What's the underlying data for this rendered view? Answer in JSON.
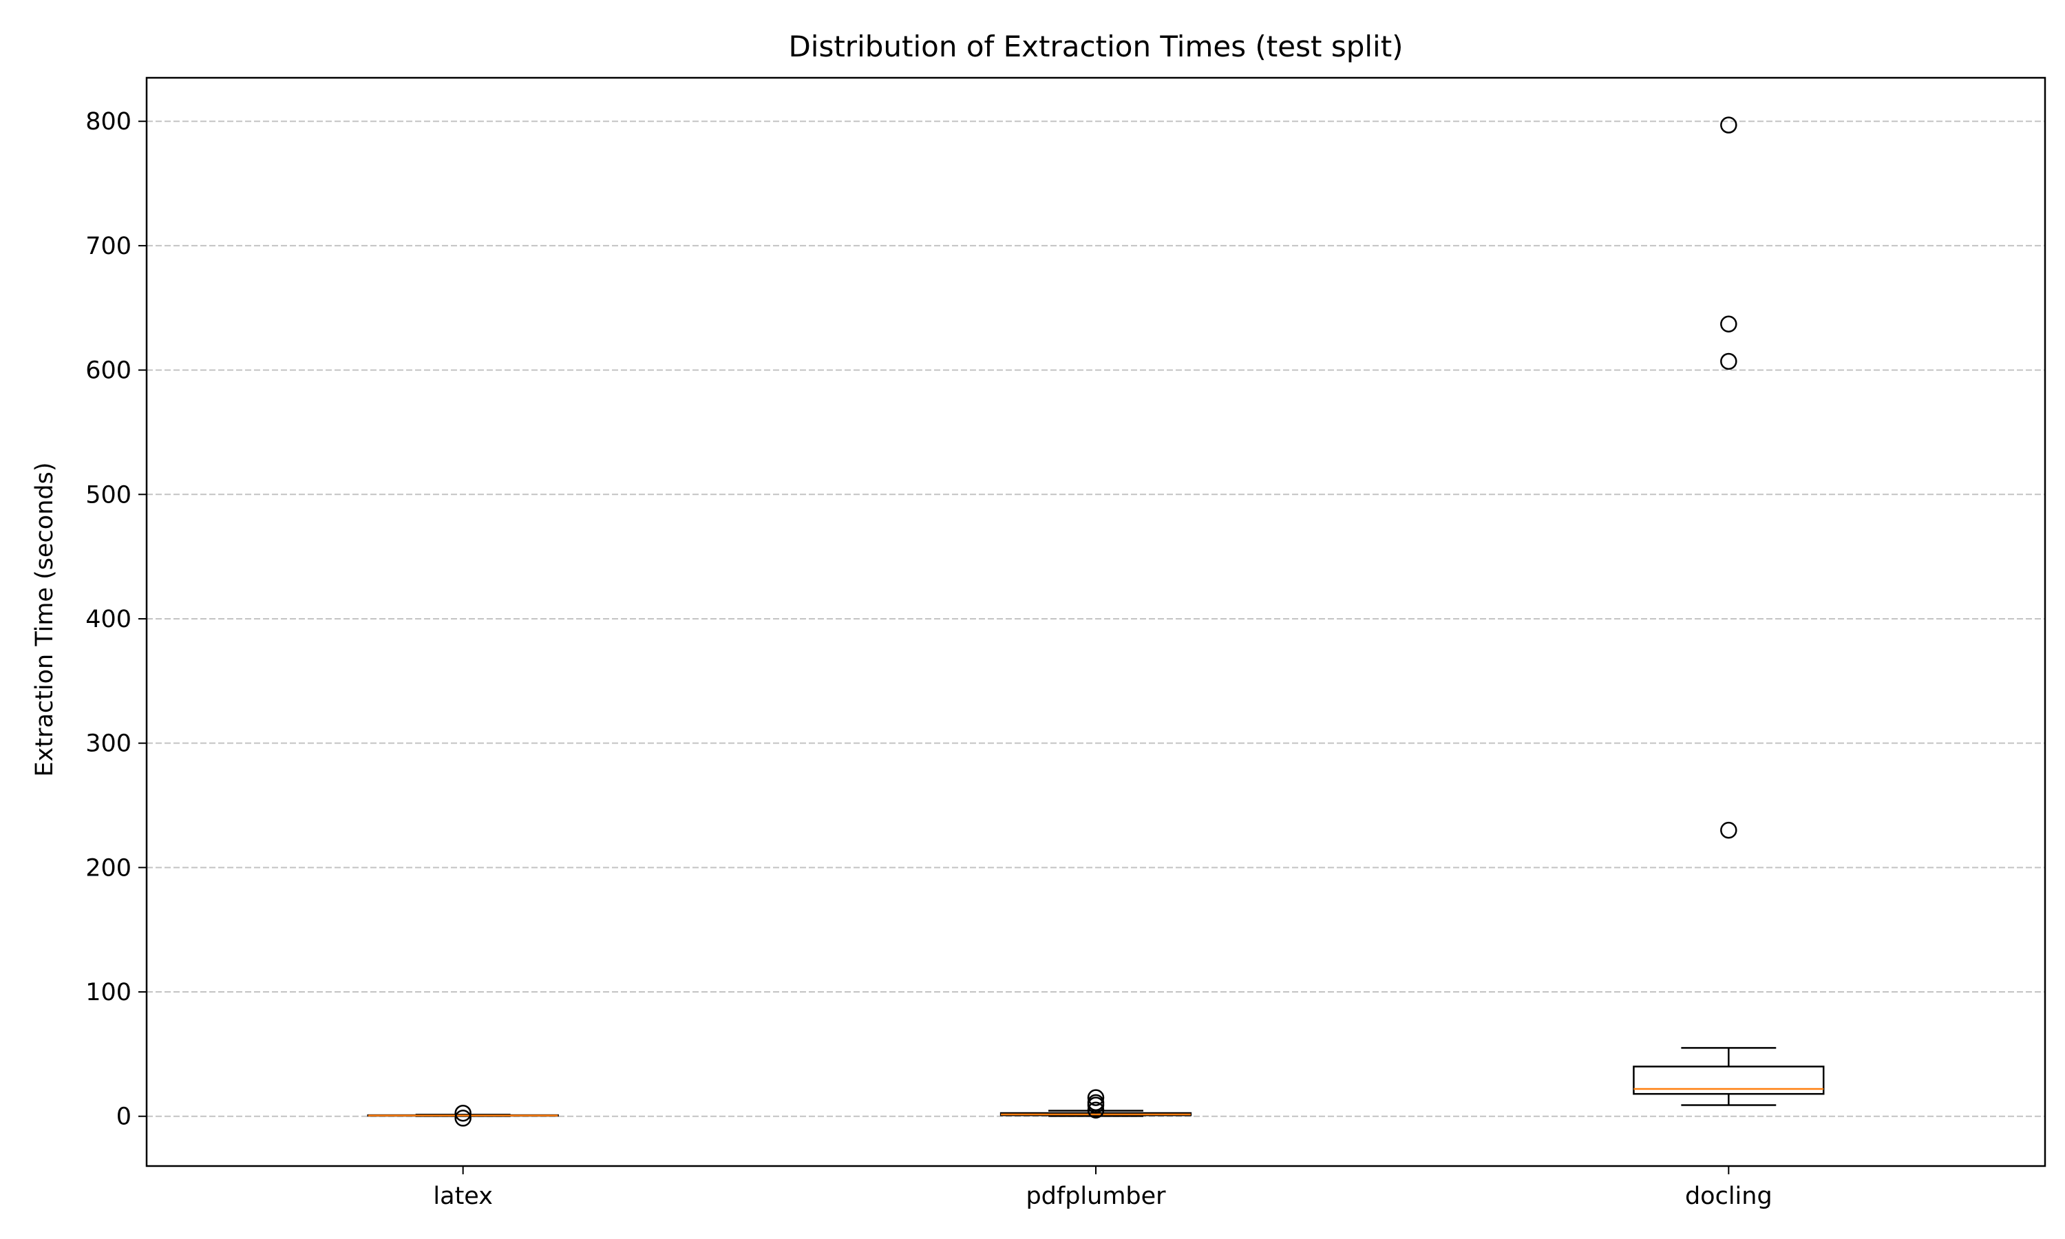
{
  "chart_data": {
    "type": "box",
    "title": "Distribution of Extraction Times (test split)",
    "xlabel": "",
    "ylabel": "Extraction Time (seconds)",
    "ylim": [
      -40,
      835
    ],
    "yticks": [
      0,
      100,
      200,
      300,
      400,
      500,
      600,
      700,
      800
    ],
    "ytick_labels": [
      "0",
      "100",
      "200",
      "300",
      "400",
      "500",
      "600",
      "700",
      "800"
    ],
    "grid": "y-dashed",
    "categories": [
      "latex",
      "pdfplumber",
      "docling"
    ],
    "boxes": [
      {
        "name": "latex",
        "whisker_low": 0.2,
        "q1": 0.4,
        "median": 0.6,
        "q3": 0.9,
        "whisker_high": 1.3,
        "outliers": [
          -1.5,
          2.5
        ]
      },
      {
        "name": "pdfplumber",
        "whisker_low": 0.2,
        "q1": 0.8,
        "median": 1.5,
        "q3": 2.6,
        "whisker_high": 4.5,
        "outliers": [
          5,
          9,
          11,
          15
        ]
      },
      {
        "name": "docling",
        "whisker_low": 9,
        "q1": 18,
        "median": 22,
        "q3": 40,
        "whisker_high": 55,
        "outliers": [
          230,
          607,
          637,
          797
        ]
      }
    ],
    "colors": {
      "box": "#000000",
      "median": "#ff7f0e",
      "grid": "#b0b0b0"
    }
  }
}
